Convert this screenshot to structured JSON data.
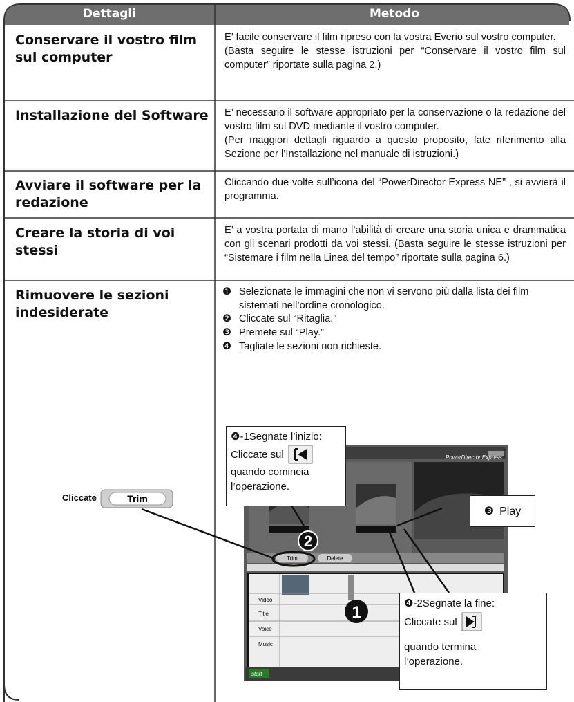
{
  "header": {
    "col1": "Dettagli",
    "col2": "Metodo"
  },
  "rows": [
    {
      "title": "Conservare il vostro film sul computer",
      "text": [
        "E’ facile conservare il film ripreso con la vostra Everio sul vostro computer.",
        "(Basta seguire le stesse istruzioni per “Conservare il vostro film sul computer” riportate sulla pagina 2.)"
      ]
    },
    {
      "title": "Installazione del Software",
      "text": [
        "E’ necessario il software appropriato per la conservazione o la redazione del vostro film sul DVD mediante il vostro computer.",
        "(Per maggiori dettagli riguardo a questo proposito, fate riferimento alla Sezione per l’Installazione nel manuale di istruzioni.)"
      ]
    },
    {
      "title": "Avviare il software per la redazione",
      "text": [
        "Cliccando due volte sull’icona del “PowerDirector Express NE” , si avvierà il programma."
      ]
    },
    {
      "title": "Creare la storia di voi stessi",
      "text": [
        "E’ a vostra portata di mano l’abilità di creare una storia unica e drammatica con gli scenari prodotti da voi stessi. (Basta seguire le stesse istruzioni per “Sistemare i film nella Linea del tempo” riportate sulla pagina 6.)"
      ]
    },
    {
      "title": "Rimuovere le sezioni indesiderate",
      "steps": [
        {
          "num": "❶",
          "text": "Selezionate le immagini che non vi servono più dalla lista dei film sistemati nell’ordine cronologico."
        },
        {
          "num": "❷",
          "text": "Cliccate sul “Ritaglia.”"
        },
        {
          "num": "❸",
          "text": "Premete sul “Play.”"
        },
        {
          "num": "❹",
          "text": "Tagliate le sezioni non richieste."
        }
      ]
    }
  ],
  "left_callout": {
    "label": "Cliccate",
    "button": "Trim"
  },
  "callout_start": {
    "title": "❹-1Segnate l’inizio:",
    "line": "Cliccate sul",
    "end": "quando comincia l’operazione."
  },
  "callout_play": {
    "num": "❸",
    "label": "Play"
  },
  "callout_end": {
    "title": "❹-2Segnate la fine:",
    "line": "Cliccate sul",
    "end": "quando termina l’operazione."
  },
  "screenshot": {
    "app": "PowerDirector Express",
    "trim": "Trim",
    "delete": "Delete",
    "tracks": [
      "Video",
      "Title",
      "Voice",
      "Music"
    ],
    "start": "start",
    "marker1": "1",
    "marker2": "2"
  }
}
